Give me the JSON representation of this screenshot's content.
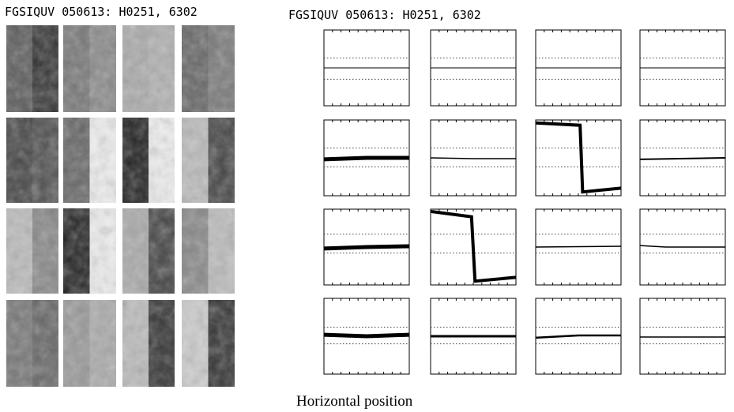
{
  "left_panel": {
    "title": "FGSIQUV  050613: H0251, 6302"
  },
  "right_panel": {
    "title": "FGSIQUV  050613: H0251, 6302",
    "x_label": "Horizontal position"
  }
}
